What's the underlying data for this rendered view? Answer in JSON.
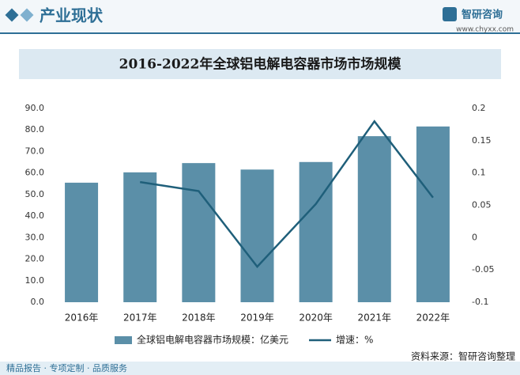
{
  "header": {
    "title": "产业现状",
    "logo": "智研咨询",
    "url": "www.chyxx.com"
  },
  "chart_data": {
    "type": "combo",
    "title": "2016-2022年全球铝电解电容器市场市场规模",
    "categories": [
      "2016年",
      "2017年",
      "2018年",
      "2019年",
      "2020年",
      "2021年",
      "2022年"
    ],
    "series": [
      {
        "name": "全球铝电解电容器市场规模：亿美元",
        "type": "bar",
        "axis": "y",
        "color": "#5b8fa8",
        "values": [
          55.5,
          60.3,
          64.6,
          61.6,
          65.1,
          77.1,
          81.6
        ]
      },
      {
        "name": "增速：%",
        "type": "line",
        "axis": "y2",
        "color": "#1f5f7a",
        "values": [
          null,
          0.086,
          0.072,
          -0.045,
          0.052,
          0.18,
          0.062
        ]
      }
    ],
    "ylim": [
      0,
      90
    ],
    "yticks": [
      {
        "value": 0,
        "label": "0.0"
      },
      {
        "value": 10,
        "label": "10.0"
      },
      {
        "value": 20,
        "label": "20.0"
      },
      {
        "value": 30,
        "label": "30.0"
      },
      {
        "value": 40,
        "label": "40.0"
      },
      {
        "value": 50,
        "label": "50.0"
      },
      {
        "value": 60,
        "label": "60.0"
      },
      {
        "value": 70,
        "label": "70.0"
      },
      {
        "value": 80,
        "label": "80.0"
      },
      {
        "value": 90,
        "label": "90.0"
      }
    ],
    "y2lim": [
      -0.1,
      0.2
    ],
    "y2ticks": [
      -0.1,
      -0.05,
      0,
      0.05,
      0.1,
      0.15,
      0.2
    ]
  },
  "source": "资料来源：智研咨询整理",
  "footer": {
    "slogan": "精品报告 · 专项定制 · 品质服务"
  }
}
